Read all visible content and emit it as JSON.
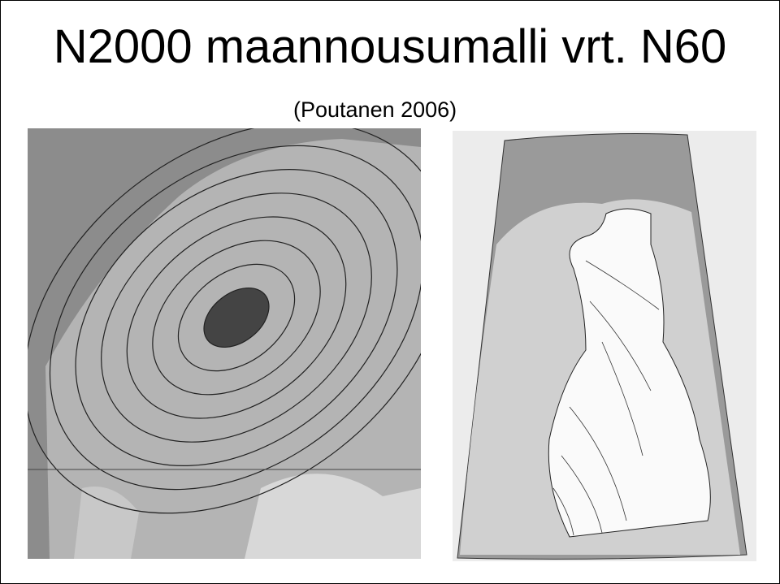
{
  "header": {
    "title": "N2000 maannousumalli vrt. N60",
    "subtitle": "(Poutanen 2006)"
  }
}
